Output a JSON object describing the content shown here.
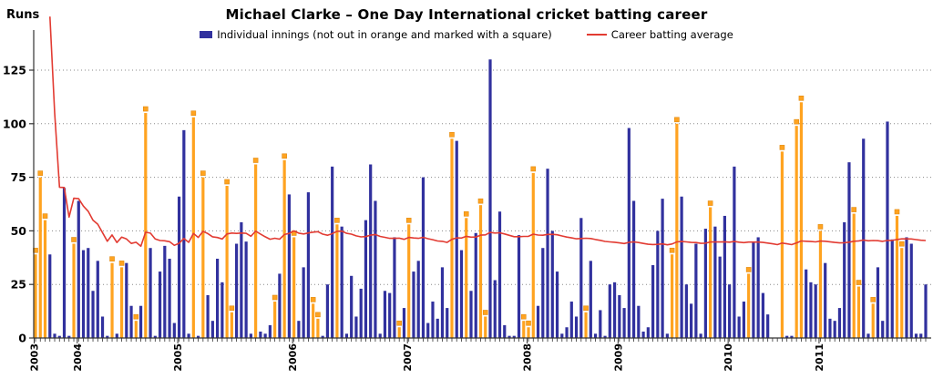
{
  "chart_data": {
    "type": "bar+line",
    "title": "Michael Clarke – One Day International cricket batting career",
    "ylabel": "Runs",
    "legend": [
      {
        "label": "Individual innings (not out in orange and marked with a square)",
        "type": "bar"
      },
      {
        "label": "Career batting average",
        "type": "line"
      }
    ],
    "colors": {
      "out_bar": "#31319e",
      "not_out_bar": "#ffa320",
      "not_out_marker": "#ffa320",
      "marker_edge": "#e08a10",
      "avg_line": "#e23b32",
      "grid": "#8a8a8a",
      "axis": "#333333",
      "text": "#000000"
    },
    "y_ticks": [
      0,
      25,
      50,
      75,
      100,
      125
    ],
    "ylim": [
      0,
      140
    ],
    "grid_style": "dotted",
    "legend_position": "top-center",
    "average_definition": "career average after each innings = cumulative runs / cumulative dismissals; not plotted before first dismissal",
    "innings_format": "[runs, not_out_flag]",
    "years": [
      {
        "year": "2003",
        "innings": [
          [
            39,
            1
          ],
          [
            75,
            1
          ],
          [
            55,
            1
          ],
          [
            39,
            0
          ],
          [
            2,
            0
          ],
          [
            1,
            0
          ],
          [
            70,
            0
          ],
          [
            1,
            0
          ],
          [
            44,
            1
          ]
        ]
      },
      {
        "year": "2004",
        "innings": [
          [
            64,
            0
          ],
          [
            41,
            0
          ],
          [
            42,
            0
          ],
          [
            22,
            0
          ],
          [
            36,
            0
          ],
          [
            10,
            0
          ],
          [
            1,
            0
          ],
          [
            35,
            1
          ],
          [
            2,
            0
          ],
          [
            33,
            1
          ],
          [
            35,
            0
          ],
          [
            15,
            0
          ],
          [
            8,
            1
          ],
          [
            15,
            0
          ],
          [
            105,
            1
          ],
          [
            42,
            0
          ],
          [
            1,
            0
          ],
          [
            31,
            0
          ],
          [
            43,
            0
          ],
          [
            37,
            0
          ],
          [
            7,
            0
          ]
        ]
      },
      {
        "year": "2005",
        "innings": [
          [
            66,
            0
          ],
          [
            97,
            0
          ],
          [
            2,
            0
          ],
          [
            103,
            1
          ],
          [
            1,
            0
          ],
          [
            75,
            1
          ],
          [
            20,
            0
          ],
          [
            8,
            0
          ],
          [
            37,
            0
          ],
          [
            26,
            0
          ],
          [
            71,
            1
          ],
          [
            12,
            1
          ],
          [
            44,
            0
          ],
          [
            54,
            0
          ],
          [
            45,
            0
          ],
          [
            2,
            0
          ],
          [
            81,
            1
          ],
          [
            3,
            0
          ],
          [
            2,
            0
          ],
          [
            6,
            0
          ],
          [
            17,
            1
          ],
          [
            30,
            0
          ],
          [
            83,
            1
          ],
          [
            67,
            0
          ]
        ]
      },
      {
        "year": "2006",
        "innings": [
          [
            47,
            1
          ],
          [
            8,
            0
          ],
          [
            33,
            0
          ],
          [
            68,
            0
          ],
          [
            16,
            1
          ],
          [
            9,
            1
          ],
          [
            1,
            0
          ],
          [
            25,
            0
          ],
          [
            80,
            0
          ],
          [
            53,
            1
          ],
          [
            52,
            0
          ],
          [
            2,
            0
          ],
          [
            29,
            0
          ],
          [
            10,
            0
          ],
          [
            23,
            0
          ],
          [
            55,
            0
          ],
          [
            81,
            0
          ],
          [
            64,
            0
          ],
          [
            2,
            0
          ],
          [
            22,
            0
          ],
          [
            21,
            0
          ],
          [
            47,
            0
          ],
          [
            5,
            1
          ],
          [
            14,
            0
          ]
        ]
      },
      {
        "year": "2007",
        "innings": [
          [
            53,
            1
          ],
          [
            31,
            0
          ],
          [
            36,
            0
          ],
          [
            75,
            0
          ],
          [
            7,
            0
          ],
          [
            17,
            0
          ],
          [
            9,
            0
          ],
          [
            33,
            0
          ],
          [
            14,
            0
          ],
          [
            93,
            1
          ],
          [
            92,
            0
          ],
          [
            41,
            0
          ],
          [
            56,
            1
          ],
          [
            22,
            0
          ],
          [
            49,
            0
          ],
          [
            62,
            1
          ],
          [
            10,
            1
          ],
          [
            130,
            0
          ],
          [
            27,
            0
          ],
          [
            59,
            0
          ],
          [
            6,
            0
          ],
          [
            1,
            0
          ],
          [
            1,
            0
          ],
          [
            48,
            0
          ],
          [
            8,
            1
          ]
        ]
      },
      {
        "year": "2008",
        "innings": [
          [
            5,
            1
          ],
          [
            77,
            1
          ],
          [
            15,
            0
          ],
          [
            42,
            0
          ],
          [
            79,
            0
          ],
          [
            50,
            0
          ],
          [
            31,
            0
          ],
          [
            2,
            0
          ],
          [
            5,
            0
          ],
          [
            17,
            0
          ],
          [
            10,
            0
          ],
          [
            56,
            0
          ],
          [
            12,
            1
          ],
          [
            36,
            0
          ],
          [
            2,
            0
          ],
          [
            13,
            0
          ],
          [
            1,
            0
          ],
          [
            25,
            0
          ],
          [
            26,
            0
          ]
        ]
      },
      {
        "year": "2009",
        "innings": [
          [
            20,
            0
          ],
          [
            14,
            0
          ],
          [
            98,
            0
          ],
          [
            64,
            0
          ],
          [
            15,
            0
          ],
          [
            3,
            0
          ],
          [
            5,
            0
          ],
          [
            34,
            0
          ],
          [
            50,
            0
          ],
          [
            65,
            0
          ],
          [
            2,
            0
          ],
          [
            39,
            1
          ],
          [
            100,
            1
          ],
          [
            66,
            0
          ],
          [
            25,
            0
          ],
          [
            16,
            0
          ],
          [
            44,
            0
          ],
          [
            2,
            0
          ],
          [
            51,
            0
          ],
          [
            61,
            1
          ],
          [
            52,
            0
          ],
          [
            38,
            0
          ],
          [
            57,
            0
          ]
        ]
      },
      {
        "year": "2010",
        "innings": [
          [
            25,
            0
          ],
          [
            80,
            0
          ],
          [
            10,
            0
          ],
          [
            17,
            0
          ],
          [
            30,
            1
          ],
          [
            45,
            0
          ],
          [
            47,
            0
          ],
          [
            21,
            0
          ],
          [
            11,
            0
          ],
          [
            0,
            0
          ],
          [
            0,
            0
          ],
          [
            87,
            1
          ],
          [
            1,
            0
          ],
          [
            1,
            0
          ],
          [
            99,
            1
          ],
          [
            110,
            1
          ],
          [
            32,
            0
          ],
          [
            26,
            0
          ],
          [
            25,
            0
          ]
        ]
      },
      {
        "year": "2011",
        "innings": [
          [
            50,
            1
          ],
          [
            35,
            0
          ],
          [
            9,
            0
          ],
          [
            8,
            0
          ],
          [
            14,
            0
          ],
          [
            54,
            0
          ],
          [
            82,
            0
          ],
          [
            58,
            1
          ],
          [
            24,
            1
          ],
          [
            93,
            0
          ],
          [
            2,
            0
          ],
          [
            16,
            1
          ],
          [
            33,
            0
          ],
          [
            8,
            0
          ],
          [
            101,
            0
          ],
          [
            46,
            0
          ],
          [
            57,
            1
          ],
          [
            42,
            1
          ],
          [
            47,
            0
          ],
          [
            44,
            0
          ],
          [
            2,
            0
          ],
          [
            2,
            0
          ],
          [
            25,
            0
          ]
        ]
      }
    ]
  }
}
